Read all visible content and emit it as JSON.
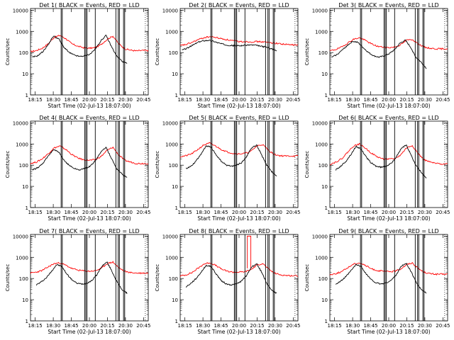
{
  "chart_data": {
    "type": "line",
    "x_ticks": [
      "18:15",
      "18:30",
      "18:45",
      "20:00",
      "20:15",
      "20:30",
      "20:45"
    ],
    "y_ticks": [
      "1",
      "10",
      "100",
      "1000",
      "10000"
    ],
    "ylim": [
      1,
      12000
    ],
    "y_scale": "log",
    "ylabel": "Counts/sec",
    "xlabel": "Start Time (02-Jul-13 18:07:00)",
    "series_colors": {
      "events": "#000000",
      "lld": "#ff0000"
    },
    "panels": [
      {
        "title": "Det 1( BLACK = Events, RED = LLD",
        "lld": [
          110,
          125,
          160,
          260,
          520,
          650,
          450,
          260,
          200,
          170,
          160,
          170,
          240,
          420,
          600,
          260,
          150,
          130,
          120,
          125,
          125
        ],
        "events": [
          60,
          70,
          110,
          230,
          600,
          450,
          180,
          100,
          75,
          65,
          70,
          85,
          150,
          350,
          650,
          200,
          70,
          40,
          30
        ],
        "events_start": 0.015,
        "events_end": 0.82
      },
      {
        "title": "Det 2( BLACK = Events, RED = LLD",
        "lld": [
          210,
          240,
          300,
          400,
          500,
          560,
          520,
          450,
          400,
          360,
          330,
          330,
          320,
          330,
          320,
          300,
          280,
          260,
          240,
          230,
          225
        ],
        "events": [
          130,
          160,
          220,
          300,
          360,
          380,
          340,
          280,
          240,
          220,
          210,
          210,
          220,
          230,
          220,
          200,
          180,
          150,
          120
        ],
        "events_start": 0.015,
        "events_end": 0.82
      },
      {
        "title": "Det 3( BLACK = Events, RED = LLD",
        "lld": [
          120,
          140,
          180,
          280,
          420,
          500,
          380,
          260,
          200,
          180,
          170,
          180,
          230,
          380,
          420,
          260,
          180,
          160,
          150,
          150,
          150
        ],
        "events": [
          60,
          80,
          130,
          220,
          340,
          300,
          170,
          100,
          70,
          60,
          70,
          90,
          140,
          280,
          380,
          180,
          60,
          35,
          18
        ],
        "events_start": 0.015,
        "events_end": 0.82
      },
      {
        "title": "Det 4( BLACK = Events, RED = LLD",
        "lld": [
          120,
          140,
          200,
          350,
          650,
          800,
          550,
          320,
          220,
          180,
          170,
          180,
          260,
          500,
          700,
          300,
          170,
          140,
          120,
          120,
          120
        ],
        "events": [
          60,
          75,
          120,
          260,
          550,
          420,
          170,
          100,
          70,
          60,
          70,
          90,
          160,
          420,
          700,
          220,
          70,
          40,
          25
        ],
        "events_start": 0.015,
        "events_end": 0.82
      },
      {
        "title": "Det 5( BLACK = Events, RED = LLD",
        "lld": [
          250,
          280,
          350,
          550,
          900,
          1100,
          800,
          550,
          420,
          360,
          340,
          360,
          450,
          800,
          950,
          500,
          320,
          280,
          270,
          270,
          270
        ],
        "events": [
          70,
          90,
          160,
          350,
          800,
          700,
          300,
          150,
          100,
          90,
          100,
          130,
          250,
          650,
          900,
          300,
          100,
          50,
          30
        ],
        "events_start": 0.05,
        "events_end": 0.82
      },
      {
        "title": "Det 6( BLACK = Events, RED = LLD",
        "lld": [
          110,
          140,
          200,
          400,
          800,
          1000,
          650,
          380,
          250,
          200,
          190,
          200,
          300,
          650,
          850,
          350,
          180,
          140,
          120,
          115,
          115
        ],
        "events": [
          60,
          90,
          150,
          320,
          750,
          600,
          250,
          130,
          90,
          80,
          90,
          120,
          250,
          600,
          900,
          280,
          90,
          45,
          25
        ],
        "events_start": 0.05,
        "events_end": 0.82
      },
      {
        "title": "Det 7( BLACK = Events, RED = LLD",
        "lld": [
          180,
          200,
          240,
          350,
          500,
          550,
          420,
          300,
          250,
          230,
          220,
          230,
          300,
          500,
          600,
          320,
          220,
          190,
          180,
          180,
          180
        ],
        "events": [
          50,
          70,
          110,
          220,
          450,
          380,
          170,
          90,
          60,
          55,
          60,
          80,
          150,
          380,
          600,
          220,
          70,
          30,
          20
        ],
        "events_start": 0.05,
        "events_end": 0.82
      },
      {
        "title": "Det 8( BLACK = Events, RED = LLD",
        "lld": [
          130,
          150,
          190,
          300,
          480,
          560,
          420,
          280,
          220,
          200,
          200,
          210,
          260,
          420,
          520,
          280,
          180,
          150,
          140,
          135,
          135
        ],
        "events": [
          40,
          60,
          100,
          200,
          420,
          360,
          160,
          80,
          55,
          50,
          55,
          75,
          140,
          350,
          500,
          200,
          60,
          28,
          20
        ],
        "events_start": 0.05,
        "events_end": 0.82,
        "lld_spike": {
          "x_from": 0.57,
          "x_to": 0.6,
          "peak": 10000
        }
      },
      {
        "title": "Det 9( BLACK = Events, RED = LLD",
        "lld": [
          150,
          170,
          210,
          320,
          480,
          550,
          420,
          290,
          240,
          220,
          210,
          220,
          280,
          450,
          550,
          300,
          200,
          170,
          160,
          160,
          160
        ],
        "events": [
          55,
          75,
          120,
          230,
          450,
          380,
          170,
          90,
          62,
          55,
          62,
          82,
          150,
          380,
          520,
          200,
          65,
          30,
          20
        ],
        "events_start": 0.05,
        "events_end": 0.82
      }
    ],
    "vertical_markers": [
      0.26,
      0.27,
      0.46,
      0.47,
      0.48,
      0.55,
      0.725,
      0.745,
      0.755,
      0.79,
      0.8
    ],
    "dotted_marker": 0.975,
    "grid": false,
    "legend": "none"
  }
}
